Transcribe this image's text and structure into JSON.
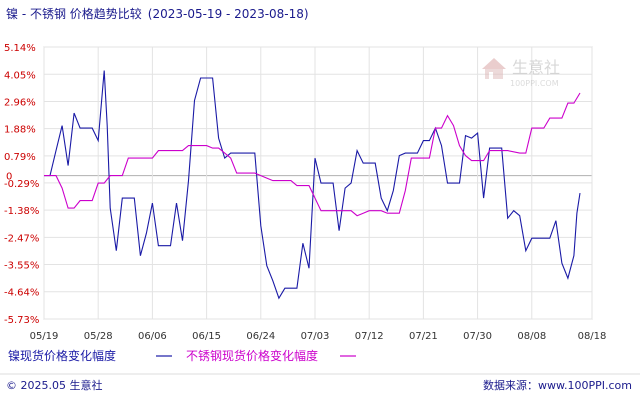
{
  "chart_data": {
    "type": "line",
    "title": "镍 - 不锈钢 价格趋势比较",
    "date_range": "(2023-05-19 - 2023-08-18)",
    "y_ticks": [
      "5.14%",
      "4.05%",
      "2.96%",
      "1.88%",
      "0.79%",
      "-0.29%",
      "-1.38%",
      "-2.47%",
      "-3.55%",
      "-4.64%",
      "-5.73%"
    ],
    "y_tick_values": [
      5.14,
      4.05,
      2.96,
      1.88,
      0.79,
      -0.29,
      -1.38,
      -2.47,
      -3.55,
      -4.64,
      -5.73
    ],
    "ylim": [
      -5.73,
      5.14
    ],
    "zero_label": "0",
    "x_ticks": [
      "05/19",
      "05/28",
      "06/06",
      "06/15",
      "06/24",
      "07/03",
      "07/12",
      "07/21",
      "07/30",
      "08/08",
      "08/18"
    ],
    "x_tick_day_index": [
      0,
      9,
      18,
      27,
      36,
      45,
      54,
      63,
      72,
      81,
      91
    ],
    "x_range_days": [
      0,
      91
    ],
    "grid": true,
    "series": [
      {
        "name": "镍现货价格变化幅度",
        "color": "#1a1aa6",
        "points": [
          [
            0,
            0
          ],
          [
            2,
            0
          ],
          [
            4,
            1
          ],
          [
            6,
            2
          ],
          [
            8,
            0.4
          ],
          [
            10,
            2.5
          ],
          [
            12,
            1.9
          ],
          [
            16,
            1.9
          ],
          [
            18,
            1.4
          ],
          [
            20,
            4.2
          ],
          [
            21,
            2
          ],
          [
            22,
            -1.3
          ],
          [
            24,
            -3
          ],
          [
            26,
            -0.9
          ],
          [
            30,
            -0.9
          ],
          [
            32,
            -3.2
          ],
          [
            34,
            -2.3
          ],
          [
            36,
            -1.1
          ],
          [
            38,
            -2.8
          ],
          [
            42,
            -2.8
          ],
          [
            44,
            -1.1
          ],
          [
            46,
            -2.6
          ],
          [
            48,
            -0.2
          ],
          [
            50,
            3
          ],
          [
            52,
            3.9
          ],
          [
            56,
            3.9
          ],
          [
            58,
            1.5
          ],
          [
            60,
            0.7
          ],
          [
            62,
            0.9
          ],
          [
            70,
            0.9
          ],
          [
            72,
            -2
          ],
          [
            74,
            -3.6
          ],
          [
            76,
            -4.2
          ],
          [
            78,
            -4.9
          ],
          [
            80,
            -4.5
          ],
          [
            84,
            -4.5
          ],
          [
            86,
            -2.7
          ],
          [
            88,
            -3.7
          ],
          [
            90,
            0.7
          ],
          [
            92,
            -0.3
          ],
          [
            96,
            -0.3
          ],
          [
            98,
            -2.2
          ],
          [
            100,
            -0.5
          ],
          [
            102,
            -0.3
          ],
          [
            104,
            1
          ],
          [
            106,
            0.5
          ],
          [
            110,
            0.5
          ],
          [
            112,
            -0.9
          ],
          [
            114,
            -1.4
          ],
          [
            116,
            -0.6
          ],
          [
            118,
            0.8
          ],
          [
            120,
            0.9
          ],
          [
            124,
            0.9
          ],
          [
            126,
            1.4
          ],
          [
            128,
            1.4
          ],
          [
            130,
            1.9
          ],
          [
            132,
            1.2
          ],
          [
            134,
            -0.3
          ],
          [
            138,
            -0.3
          ],
          [
            140,
            1.6
          ],
          [
            142,
            1.5
          ],
          [
            144,
            1.7
          ],
          [
            146,
            -0.9
          ],
          [
            148,
            1.1
          ],
          [
            152,
            1.1
          ],
          [
            154,
            -1.7
          ],
          [
            156,
            -1.4
          ],
          [
            158,
            -1.6
          ],
          [
            160,
            -3
          ],
          [
            162,
            -2.5
          ],
          [
            164,
            -2.5
          ],
          [
            168,
            -2.5
          ],
          [
            170,
            -1.8
          ],
          [
            172,
            -3.5
          ],
          [
            174,
            -4.1
          ],
          [
            176,
            -3.2
          ],
          [
            177,
            -1.5
          ],
          [
            178,
            -0.7
          ]
        ],
        "x_scale_note": "points x in half-day steps from 05/19 (0 to 178)"
      },
      {
        "name": "不锈钢现货价格变化幅度",
        "color": "#cc00cc",
        "points": [
          [
            0,
            0
          ],
          [
            4,
            0
          ],
          [
            6,
            -0.5
          ],
          [
            8,
            -1.3
          ],
          [
            10,
            -1.3
          ],
          [
            12,
            -1
          ],
          [
            16,
            -1
          ],
          [
            18,
            -0.3
          ],
          [
            20,
            -0.3
          ],
          [
            22,
            0
          ],
          [
            26,
            0
          ],
          [
            28,
            0.7
          ],
          [
            36,
            0.7
          ],
          [
            38,
            1
          ],
          [
            46,
            1
          ],
          [
            48,
            1.2
          ],
          [
            54,
            1.2
          ],
          [
            56,
            1.1
          ],
          [
            58,
            1.1
          ],
          [
            60,
            0.9
          ],
          [
            62,
            0.7
          ],
          [
            64,
            0.1
          ],
          [
            70,
            0.1
          ],
          [
            72,
            0
          ],
          [
            74,
            -0.1
          ],
          [
            76,
            -0.2
          ],
          [
            82,
            -0.2
          ],
          [
            84,
            -0.4
          ],
          [
            88,
            -0.4
          ],
          [
            90,
            -0.9
          ],
          [
            92,
            -1.4
          ],
          [
            102,
            -1.4
          ],
          [
            104,
            -1.6
          ],
          [
            106,
            -1.5
          ],
          [
            108,
            -1.4
          ],
          [
            112,
            -1.4
          ],
          [
            114,
            -1.5
          ],
          [
            118,
            -1.5
          ],
          [
            120,
            -0.6
          ],
          [
            122,
            0.7
          ],
          [
            128,
            0.7
          ],
          [
            130,
            1.9
          ],
          [
            132,
            1.9
          ],
          [
            134,
            2.4
          ],
          [
            136,
            2
          ],
          [
            138,
            1.2
          ],
          [
            140,
            0.8
          ],
          [
            142,
            0.6
          ],
          [
            146,
            0.6
          ],
          [
            148,
            1
          ],
          [
            154,
            1
          ],
          [
            158,
            0.9
          ],
          [
            160,
            0.9
          ],
          [
            162,
            1.9
          ],
          [
            166,
            1.9
          ],
          [
            168,
            2.3
          ],
          [
            172,
            2.3
          ],
          [
            174,
            2.9
          ],
          [
            176,
            2.9
          ],
          [
            178,
            3.3
          ]
        ]
      }
    ],
    "watermark": "生意社",
    "watermark_url": "100PPI.COM"
  },
  "footer": {
    "copyright": "© 2025.05 生意社",
    "site": "数据来源：www.100PPI.com"
  }
}
